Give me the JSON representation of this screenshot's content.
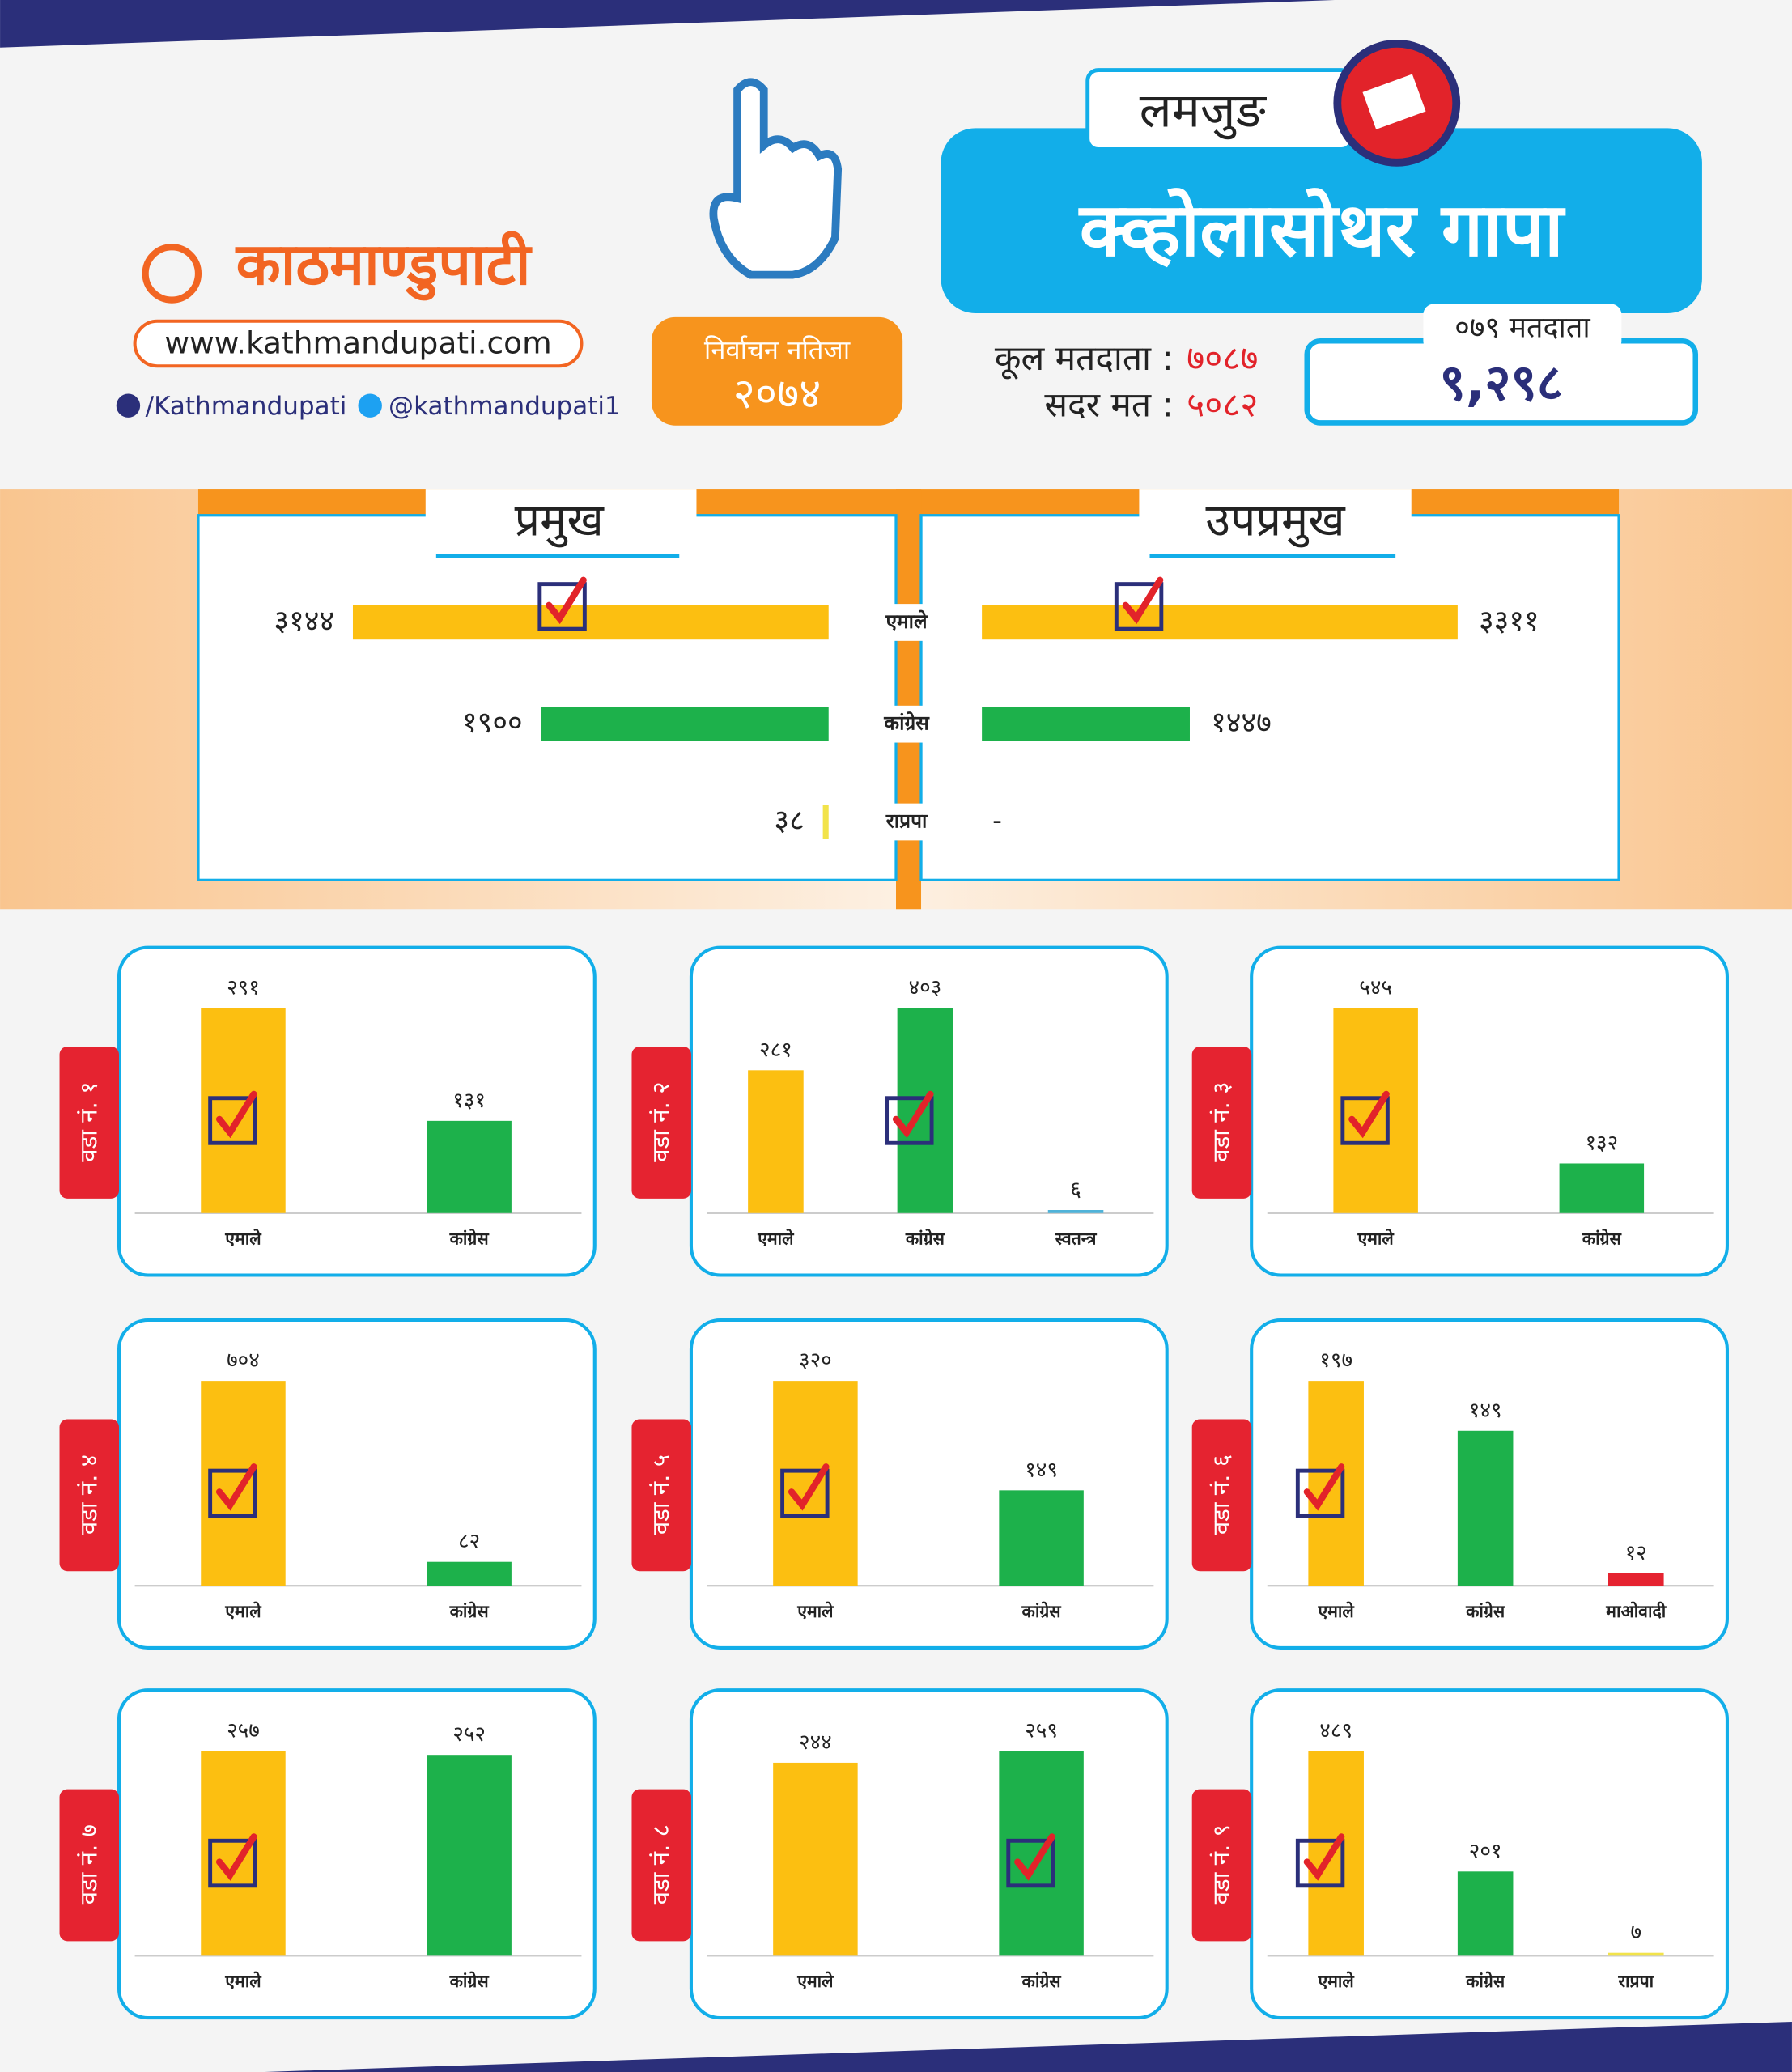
{
  "header": {
    "district": "लमजुङ",
    "municipality": "क्व्होलासोथर गापा",
    "logo": "काठमाण्डुपाटी",
    "website": "www.kathmandupati.com",
    "facebook": "/Kathmandupati",
    "twitter": "@kathmandupati1",
    "badge_title": "निर्वाचन नतिजा",
    "badge_year": "२०७४",
    "voters_label": "कूल मतदाता :",
    "voters": "७०८७",
    "valid_label": "सदर मत :",
    "valid": "५०८२",
    "voters_079_label": "०७९ मतदाता",
    "voters_079": "९,२९८"
  },
  "chart_data": [
    {
      "type": "split-hbar",
      "categories": [
        "एमाले",
        "कांग्रेस",
        "राप्रपा"
      ],
      "colors": [
        "#fcbf11",
        "#1db14b",
        "#f2e34a"
      ],
      "series": [
        {
          "name": "प्रमुख",
          "values": [
            3144,
            1900,
            38
          ],
          "value_labels": [
            "३१४४",
            "१९००",
            "३८"
          ],
          "winner": 0
        },
        {
          "name": "उपप्रमुख",
          "values": [
            3311,
            1447,
            null
          ],
          "value_labels": [
            "३३११",
            "१४४७",
            "-"
          ],
          "winner": 0
        }
      ]
    },
    {
      "type": "bar",
      "title": "वडा नं. १",
      "categories": [
        "एमाले",
        "कांग्रेस"
      ],
      "values": [
        291,
        131
      ],
      "value_labels": [
        "२९१",
        "१३१"
      ],
      "colors": [
        "#fcbf11",
        "#1db14b"
      ],
      "winner": 0
    },
    {
      "type": "bar",
      "title": "वडा नं. २",
      "categories": [
        "एमाले",
        "कांग्रेस",
        "स्वतन्त्र"
      ],
      "values": [
        281,
        403,
        6
      ],
      "value_labels": [
        "२८१",
        "४०३",
        "६"
      ],
      "colors": [
        "#fcbf11",
        "#1db14b",
        "#4fb3d9"
      ],
      "winner": 1
    },
    {
      "type": "bar",
      "title": "वडा नं. ३",
      "categories": [
        "एमाले",
        "कांग्रेस"
      ],
      "values": [
        545,
        132
      ],
      "value_labels": [
        "५४५",
        "१३२"
      ],
      "colors": [
        "#fcbf11",
        "#1db14b"
      ],
      "winner": 0
    },
    {
      "type": "bar",
      "title": "वडा नं. ४",
      "categories": [
        "एमाले",
        "कांग्रेस"
      ],
      "values": [
        704,
        82
      ],
      "value_labels": [
        "७०४",
        "८२"
      ],
      "colors": [
        "#fcbf11",
        "#1db14b"
      ],
      "winner": 0
    },
    {
      "type": "bar",
      "title": "वडा नं. ५",
      "categories": [
        "एमाले",
        "कांग्रेस"
      ],
      "values": [
        320,
        149
      ],
      "value_labels": [
        "३२०",
        "१४९"
      ],
      "colors": [
        "#fcbf11",
        "#1db14b"
      ],
      "winner": 0
    },
    {
      "type": "bar",
      "title": "वडा नं. ६",
      "categories": [
        "एमाले",
        "कांग्रेस",
        "माओवादी"
      ],
      "values": [
        197,
        149,
        12
      ],
      "value_labels": [
        "१९७",
        "१४९",
        "१२"
      ],
      "colors": [
        "#fcbf11",
        "#1db14b",
        "#e52330"
      ],
      "winner": 0
    },
    {
      "type": "bar",
      "title": "वडा नं. ७",
      "categories": [
        "एमाले",
        "कांग्रेस"
      ],
      "values": [
        257,
        252
      ],
      "value_labels": [
        "२५७",
        "२५२"
      ],
      "colors": [
        "#fcbf11",
        "#1db14b"
      ],
      "winner": 0
    },
    {
      "type": "bar",
      "title": "वडा नं. ८",
      "categories": [
        "एमाले",
        "कांग्रेस"
      ],
      "values": [
        244,
        259
      ],
      "value_labels": [
        "२४४",
        "२५९"
      ],
      "colors": [
        "#fcbf11",
        "#1db14b"
      ],
      "winner": 1
    },
    {
      "type": "bar",
      "title": "वडा नं. ९",
      "categories": [
        "एमाले",
        "कांग्रेस",
        "राप्रपा"
      ],
      "values": [
        489,
        201,
        7
      ],
      "value_labels": [
        "४८९",
        "२०१",
        "७"
      ],
      "colors": [
        "#fcbf11",
        "#1db14b",
        "#f2e34a"
      ],
      "winner": 0
    }
  ]
}
